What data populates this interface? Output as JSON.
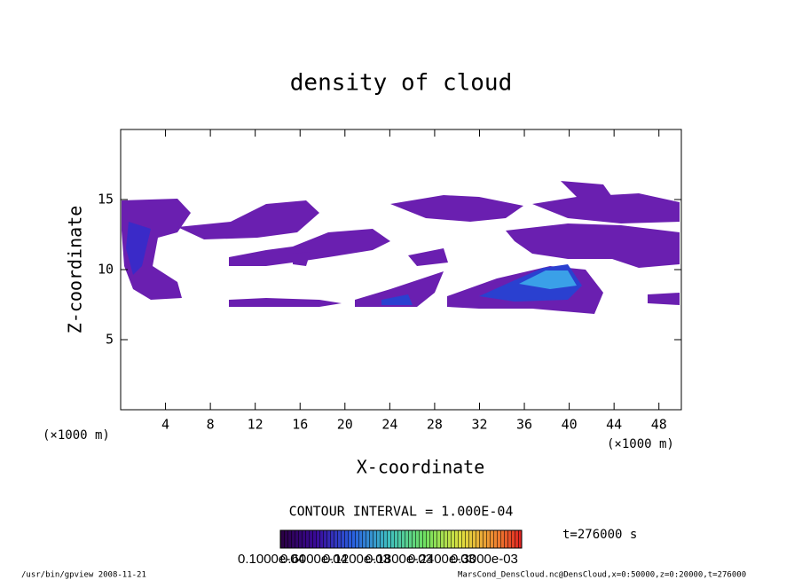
{
  "chart_data": {
    "type": "contour",
    "title": "density of cloud",
    "x_label": "X-coordinate",
    "y_label": "Z-coordinate",
    "x_unit_left": "(×1000 m)",
    "x_unit_right": "(×1000 m)",
    "xlim": [
      0,
      50
    ],
    "xticks": [
      4,
      8,
      12,
      16,
      20,
      24,
      28,
      32,
      36,
      40,
      44,
      48
    ],
    "ylim": [
      0,
      20
    ],
    "yticks": [
      5,
      10,
      15
    ],
    "contour_interval": "CONTOUR INTERVAL = 1.000E-04",
    "time_label": "t=276000 s",
    "colorbar_labels": [
      "0.1000e-04",
      "0.6000e-04",
      "0.1200e-03",
      "0.1800e-03",
      "0.2400e-03",
      "0.3000e-03"
    ],
    "footer_left": "/usr/bin/gpview  2008-11-21",
    "footer_right": "MarsCond_DensCloud.nc@DensCloud,x=0:50000,z=0:20000,t=276000"
  }
}
